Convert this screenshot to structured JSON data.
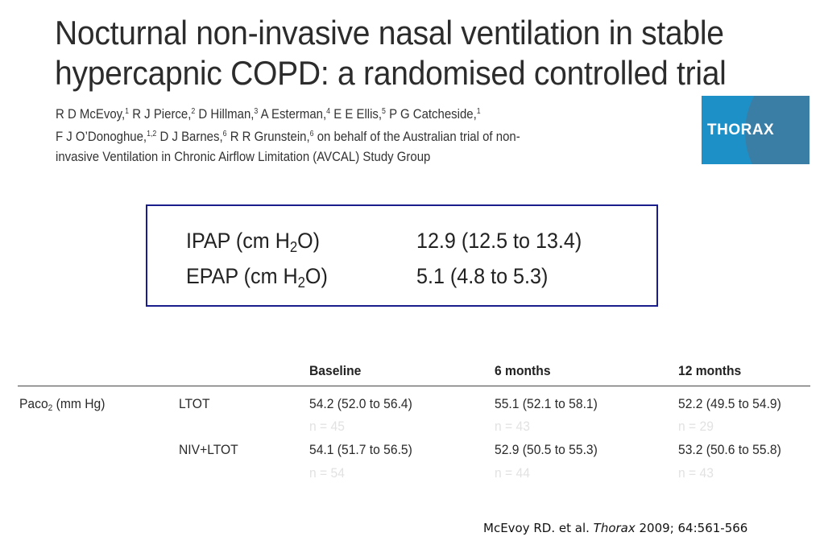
{
  "paper": {
    "title_line1": "Nocturnal non-invasive nasal ventilation in stable",
    "title_line2": "hypercapnic COPD: a randomised controlled trial",
    "authors_line1": [
      {
        "name": "R D McEvoy,",
        "sup": "1"
      },
      {
        "name": " R J Pierce,",
        "sup": "2"
      },
      {
        "name": " D Hillman,",
        "sup": "3"
      },
      {
        "name": " A Esterman,",
        "sup": "4"
      },
      {
        "name": " E E Ellis,",
        "sup": "5"
      },
      {
        "name": " P G Catcheside,",
        "sup": "1"
      }
    ],
    "authors_line2": [
      {
        "name": "F J O’Donoghue,",
        "sup": "1,2"
      },
      {
        "name": " D J Barnes,",
        "sup": "6"
      },
      {
        "name": " R R Grunstein,",
        "sup": "6"
      },
      {
        "name": " on behalf of the Australian trial of non-",
        "sup": ""
      }
    ],
    "authors_line3": "invasive Ventilation in Chronic Airflow Limitation (AVCAL) Study Group"
  },
  "journal_logo": {
    "text": "THORAX",
    "bg_color": "#1e90c8",
    "arc_color": "#3a7ea6"
  },
  "pressure_box": {
    "border_color": "#1a1e8c",
    "rows": [
      {
        "param": "IPAP (cm H",
        "sub": "2",
        "param_end": "O)",
        "value": "12.9 (12.5 to 13.4)"
      },
      {
        "param": "EPAP (cm H",
        "sub": "2",
        "param_end": "O)",
        "value": "5.1 (4.8 to 5.3)"
      }
    ]
  },
  "paco_table": {
    "headers": [
      "Baseline",
      "6 months",
      "12 months"
    ],
    "row_label": "Paco",
    "row_label_sub": "2",
    "row_label_unit": " (mm Hg)",
    "groups": [
      {
        "name": "LTOT",
        "values": [
          "54.2 (52.0 to 56.4)",
          "55.1 (52.1 to 58.1)",
          "52.2 (49.5 to 54.9)"
        ],
        "n": [
          "n = 45",
          "n = 43",
          "n = 29"
        ]
      },
      {
        "name": "NIV+LTOT",
        "values": [
          "54.1 (51.7 to 56.5)",
          "52.9 (50.5 to 55.3)",
          "53.2 (50.6 to 55.8)"
        ],
        "n": [
          "n = 54",
          "n = 44",
          "n = 43"
        ]
      }
    ]
  },
  "citation": {
    "prefix": "McEvoy RD. et al. ",
    "journal": "Thorax",
    "suffix": " 2009; 64:561-566"
  }
}
